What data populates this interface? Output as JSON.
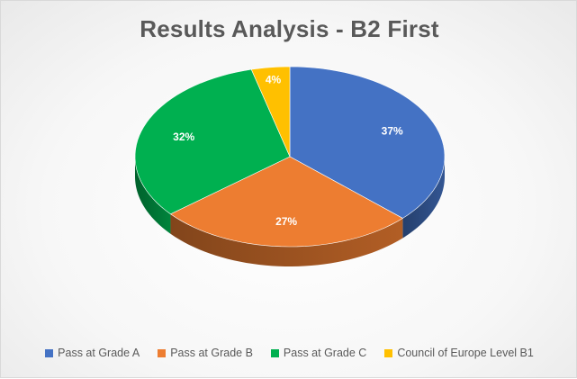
{
  "chart_data": {
    "type": "pie",
    "title": "Results Analysis - B2 First",
    "style": "3d",
    "start": "top",
    "direction": "clockwise",
    "legend_position": "bottom",
    "slices": [
      {
        "label": "Pass at Grade A",
        "value": 37,
        "display": "37%",
        "color": "#4472C4"
      },
      {
        "label": "Pass at Grade B",
        "value": 27,
        "display": "27%",
        "color": "#ED7D31"
      },
      {
        "label": "Pass at Grade C",
        "value": 32,
        "display": "32%",
        "color": "#00B050"
      },
      {
        "label": "Council of Europe Level B1",
        "value": 4,
        "display": "4%",
        "color": "#FFC000"
      }
    ]
  }
}
